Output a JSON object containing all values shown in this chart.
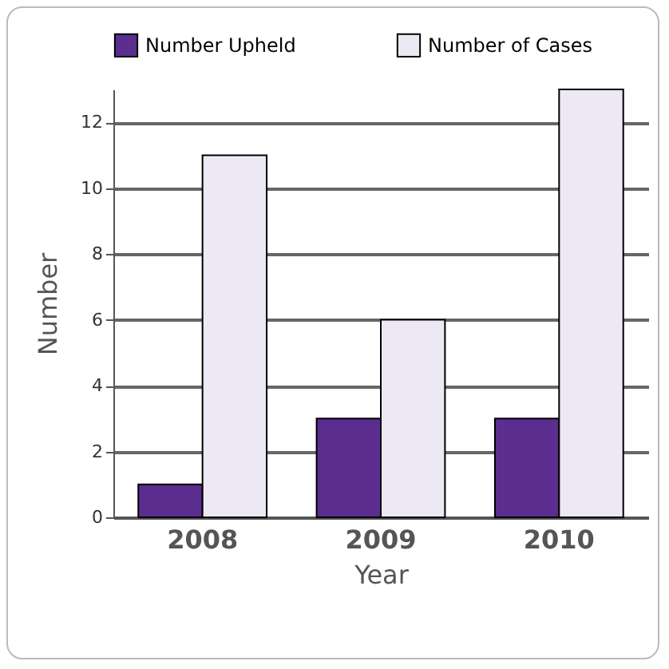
{
  "chart_data": {
    "type": "bar",
    "xlabel": "Year",
    "ylabel": "Number",
    "categories": [
      "2008",
      "2009",
      "2010"
    ],
    "series": [
      {
        "name": "Number Upheld",
        "color": "#5b2d8e",
        "values": [
          1,
          3,
          3
        ]
      },
      {
        "name": "Number of Cases",
        "color": "#ece8f4",
        "values": [
          11,
          6,
          13
        ]
      }
    ],
    "ylim": [
      0,
      13
    ],
    "yticks": [
      0,
      2,
      4,
      6,
      8,
      10,
      12
    ],
    "grid": "y",
    "legend": "top"
  }
}
